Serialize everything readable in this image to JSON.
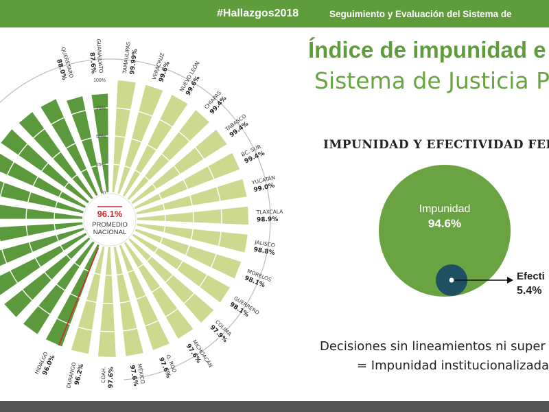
{
  "header": {
    "hashtag": "#Hallazgos2018",
    "subtitle": "Seguimiento y Evaluación del Sistema de"
  },
  "slide": {
    "title_line1": "Índice de impunidad e",
    "title_line2": "Sistema de Justicia Pe",
    "section_title": "IMPUNIDAD Y EFECTIVIDAD FED",
    "note_line1": "Decisiones sin lineamientos ni super",
    "note_line2": "= Impunidad institucionalizada"
  },
  "colors": {
    "header_green": "#5f9c3b",
    "dark_bar": "#5a9a3c",
    "light_bar": "#ccd98f",
    "average_line": "#cc2a2a",
    "efectividad_circle": "#1f4f63"
  },
  "chart_data": [
    {
      "type": "radial-bar",
      "center_label": {
        "value": "96.1%",
        "text": "PROMEDIO NACIONAL"
      },
      "average": 96.1,
      "ylim": [
        0,
        100
      ],
      "scale_ticks": [
        "100%",
        "75%",
        "50%",
        "25%",
        "0"
      ],
      "categories": [
        {
          "name": "TAMAULIPAS",
          "value_label": "99.99%",
          "value": 99.99,
          "light": true
        },
        {
          "name": "VERACRUZ",
          "value_label": "99.6%",
          "value": 99.6,
          "light": true
        },
        {
          "name": "NUEVO LEÓN",
          "value_label": "99.6%",
          "value": 99.6,
          "light": true
        },
        {
          "name": "CHIAPAS",
          "value_label": "99.4%",
          "value": 99.4,
          "light": true
        },
        {
          "name": "TABASCO",
          "value_label": "99.4%",
          "value": 99.4,
          "light": true
        },
        {
          "name": "BC. SUR",
          "value_label": "99.4%",
          "value": 99.4,
          "light": true
        },
        {
          "name": "YUCATÁN",
          "value_label": "99.0%",
          "value": 99.0,
          "light": true
        },
        {
          "name": "TLAXCALA",
          "value_label": "98.9%",
          "value": 98.9,
          "light": true
        },
        {
          "name": "JALISCO",
          "value_label": "98.8%",
          "value": 98.8,
          "light": true
        },
        {
          "name": "MORELOS",
          "value_label": "98.1%",
          "value": 98.1,
          "light": true
        },
        {
          "name": "GUERRERO",
          "value_label": "98.1%",
          "value": 98.1,
          "light": true
        },
        {
          "name": "COLIMA",
          "value_label": "97.9%",
          "value": 97.9,
          "light": true
        },
        {
          "name": "MICHOACÁN",
          "value_label": "97.6%",
          "value": 97.6,
          "light": true
        },
        {
          "name": "Q. ROO",
          "value_label": "97.6%",
          "value": 97.6,
          "light": true
        },
        {
          "name": "MÉXICO",
          "value_label": "97.6%",
          "value": 97.6,
          "light": true
        },
        {
          "name": "COAH.",
          "value_label": "97.6%",
          "value": 97.6,
          "light": true
        },
        {
          "name": "DURANGO",
          "value_label": "96.2%",
          "value": 96.2,
          "light": true
        },
        {
          "name": "HIDALGO",
          "value_label": "96.0%",
          "value": 96.0,
          "light": false
        },
        {
          "name": "",
          "value_label": "",
          "value": 95.8,
          "light": false
        },
        {
          "name": "",
          "value_label": "",
          "value": 95.6,
          "light": false
        },
        {
          "name": "",
          "value_label": "",
          "value": 95.4,
          "light": false
        },
        {
          "name": "",
          "value_label": "",
          "value": 95.2,
          "light": false
        },
        {
          "name": "",
          "value_label": "",
          "value": 95.0,
          "light": false
        },
        {
          "name": "",
          "value_label": "",
          "value": 94.8,
          "light": false
        },
        {
          "name": "",
          "value_label": "",
          "value": 94.5,
          "light": false
        },
        {
          "name": "",
          "value_label": "",
          "value": 94.2,
          "light": false
        },
        {
          "name": "",
          "value_label": "",
          "value": 94.0,
          "light": false
        },
        {
          "name": "",
          "value_label": "",
          "value": 93.5,
          "light": false
        },
        {
          "name": "",
          "value_label": "",
          "value": 93.0,
          "light": false
        },
        {
          "name": "QUERÉTARO",
          "value_label": "88.0%",
          "value": 88.0,
          "light": false
        },
        {
          "name": "GUANAJUATO",
          "value_label": "87.6%",
          "value": 87.6,
          "light": false
        }
      ]
    },
    {
      "type": "bubble",
      "series": [
        {
          "name": "Impunidad",
          "value_label": "94.6%",
          "value": 94.6
        },
        {
          "name": "Efecti",
          "value_label": "5.4%",
          "value": 5.4
        }
      ]
    }
  ]
}
